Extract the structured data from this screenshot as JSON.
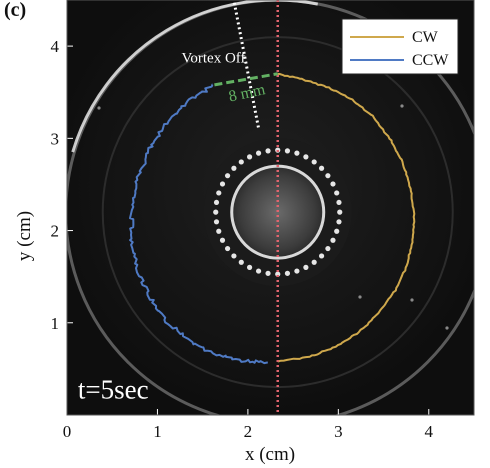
{
  "panel_label": "(c)",
  "chart_data": {
    "type": "line",
    "background": "grayscale photograph of a circular cylinder with a ring of holes (dark background)",
    "xlabel": "x (cm)",
    "ylabel": "y (cm)",
    "xlim": [
      0,
      4.5
    ],
    "ylim": [
      0,
      4.5
    ],
    "xticks": [
      0,
      1,
      2,
      3,
      4
    ],
    "yticks": [
      1,
      2,
      3,
      4
    ],
    "grid": false,
    "legend": {
      "placement": "top-right",
      "entries": [
        {
          "label": "CW",
          "color": "#cfa84c"
        },
        {
          "label": "CCW",
          "color": "#4f7ac4"
        }
      ]
    },
    "center": {
      "x": 2.33,
      "y": 2.2
    },
    "series": [
      {
        "name": "CW",
        "color": "#cfa84c",
        "side": "right",
        "points": [
          [
            2.33,
            3.7
          ],
          [
            2.6,
            3.64
          ],
          [
            2.9,
            3.55
          ],
          [
            3.15,
            3.42
          ],
          [
            3.38,
            3.24
          ],
          [
            3.57,
            3.0
          ],
          [
            3.71,
            2.74
          ],
          [
            3.8,
            2.46
          ],
          [
            3.84,
            2.18
          ],
          [
            3.82,
            1.9
          ],
          [
            3.76,
            1.62
          ],
          [
            3.63,
            1.35
          ],
          [
            3.45,
            1.11
          ],
          [
            3.23,
            0.9
          ],
          [
            2.97,
            0.74
          ],
          [
            2.68,
            0.63
          ],
          [
            2.33,
            0.58
          ]
        ]
      },
      {
        "name": "CCW",
        "color": "#4f7ac4",
        "side": "left",
        "points": [
          [
            1.63,
            3.58
          ],
          [
            1.43,
            3.46
          ],
          [
            1.22,
            3.3
          ],
          [
            1.03,
            3.07
          ],
          [
            0.87,
            2.8
          ],
          [
            0.76,
            2.5
          ],
          [
            0.71,
            2.18
          ],
          [
            0.72,
            1.86
          ],
          [
            0.79,
            1.55
          ],
          [
            0.92,
            1.26
          ],
          [
            1.1,
            1.01
          ],
          [
            1.34,
            0.81
          ],
          [
            1.62,
            0.67
          ],
          [
            1.93,
            0.59
          ],
          [
            2.22,
            0.57
          ]
        ]
      }
    ],
    "annotations": {
      "vortex_off_label": "Vortex Off",
      "gap_label": "8 mm",
      "time_label": "t=5sec"
    },
    "colors": {
      "symmetry_line": "#e0646e",
      "gap_dash": "#63b163",
      "pointer": "#ffffff"
    }
  }
}
